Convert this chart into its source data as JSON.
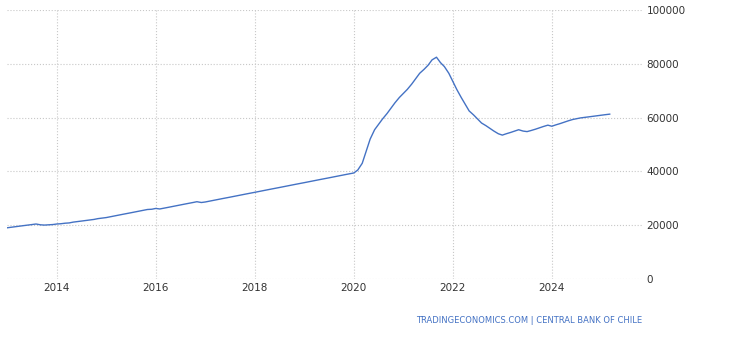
{
  "title": "",
  "watermark_left": "TRADINGECONOMICS.COM",
  "watermark_right": "| CENTRAL BANK OF CHILE",
  "watermark": "TRADINGECONOMICS.COM | CENTRAL BANK OF CHILE",
  "line_color": "#4472c4",
  "bg_color": "#ffffff",
  "grid_color": "#c8c8c8",
  "ylim": [
    0,
    100000
  ],
  "yticks": [
    0,
    20000,
    40000,
    60000,
    80000,
    100000
  ],
  "xlim_start": 2013.0,
  "xlim_end": 2025.83,
  "xtick_years": [
    2014,
    2016,
    2018,
    2020,
    2022,
    2024
  ],
  "x": [
    2013.0,
    2013.08,
    2013.17,
    2013.25,
    2013.33,
    2013.42,
    2013.5,
    2013.58,
    2013.67,
    2013.75,
    2013.83,
    2013.92,
    2014.0,
    2014.08,
    2014.17,
    2014.25,
    2014.33,
    2014.42,
    2014.5,
    2014.58,
    2014.67,
    2014.75,
    2014.83,
    2014.92,
    2015.0,
    2015.08,
    2015.17,
    2015.25,
    2015.33,
    2015.42,
    2015.5,
    2015.58,
    2015.67,
    2015.75,
    2015.83,
    2015.92,
    2016.0,
    2016.08,
    2016.17,
    2016.25,
    2016.33,
    2016.42,
    2016.5,
    2016.58,
    2016.67,
    2016.75,
    2016.83,
    2016.92,
    2017.0,
    2017.08,
    2017.17,
    2017.25,
    2017.33,
    2017.42,
    2017.5,
    2017.58,
    2017.67,
    2017.75,
    2017.83,
    2017.92,
    2018.0,
    2018.08,
    2018.17,
    2018.25,
    2018.33,
    2018.42,
    2018.5,
    2018.58,
    2018.67,
    2018.75,
    2018.83,
    2018.92,
    2019.0,
    2019.08,
    2019.17,
    2019.25,
    2019.33,
    2019.42,
    2019.5,
    2019.58,
    2019.67,
    2019.75,
    2019.83,
    2019.92,
    2020.0,
    2020.08,
    2020.17,
    2020.25,
    2020.33,
    2020.42,
    2020.5,
    2020.58,
    2020.67,
    2020.75,
    2020.83,
    2020.92,
    2021.0,
    2021.08,
    2021.17,
    2021.25,
    2021.33,
    2021.42,
    2021.5,
    2021.58,
    2021.67,
    2021.75,
    2021.83,
    2021.92,
    2022.0,
    2022.08,
    2022.17,
    2022.25,
    2022.33,
    2022.42,
    2022.5,
    2022.58,
    2022.67,
    2022.75,
    2022.83,
    2022.92,
    2023.0,
    2023.08,
    2023.17,
    2023.25,
    2023.33,
    2023.42,
    2023.5,
    2023.58,
    2023.67,
    2023.75,
    2023.83,
    2023.92,
    2024.0,
    2024.08,
    2024.17,
    2024.25,
    2024.33,
    2024.42,
    2024.5,
    2024.58,
    2024.67,
    2024.75,
    2024.83,
    2024.92,
    2025.0,
    2025.08,
    2025.17
  ],
  "y": [
    19000,
    19200,
    19400,
    19600,
    19800,
    20000,
    20200,
    20400,
    20100,
    20000,
    20100,
    20200,
    20400,
    20500,
    20700,
    20800,
    21100,
    21300,
    21500,
    21700,
    21900,
    22100,
    22400,
    22600,
    22800,
    23100,
    23400,
    23700,
    24000,
    24300,
    24600,
    24900,
    25200,
    25500,
    25800,
    25900,
    26200,
    26000,
    26300,
    26600,
    26900,
    27200,
    27500,
    27800,
    28100,
    28400,
    28700,
    28400,
    28600,
    28900,
    29200,
    29500,
    29800,
    30100,
    30400,
    30700,
    31000,
    31300,
    31600,
    31900,
    32200,
    32500,
    32800,
    33100,
    33400,
    33700,
    34000,
    34300,
    34600,
    34900,
    35200,
    35500,
    35800,
    36100,
    36400,
    36700,
    37000,
    37300,
    37600,
    37900,
    38200,
    38500,
    38800,
    39100,
    39400,
    40500,
    43000,
    47500,
    52000,
    55500,
    57500,
    59500,
    61500,
    63500,
    65500,
    67500,
    69000,
    70500,
    72500,
    74500,
    76500,
    78000,
    79500,
    81500,
    82500,
    80500,
    79000,
    76500,
    73500,
    70500,
    67500,
    65000,
    62500,
    61000,
    59500,
    58000,
    57000,
    56000,
    55000,
    54000,
    53500,
    54000,
    54500,
    55000,
    55500,
    55000,
    54800,
    55200,
    55700,
    56200,
    56700,
    57200,
    56800,
    57300,
    57800,
    58300,
    58800,
    59300,
    59600,
    59900,
    60100,
    60300,
    60500,
    60700,
    60900,
    61100,
    61300
  ]
}
